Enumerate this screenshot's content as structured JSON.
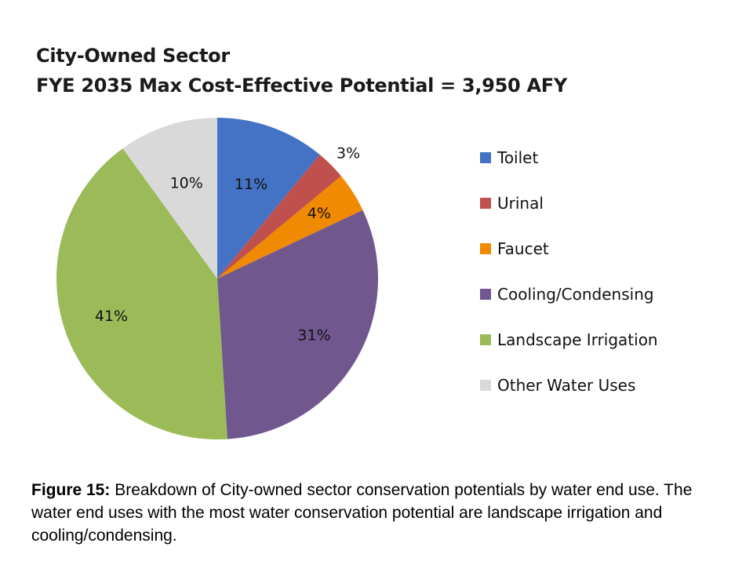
{
  "chart_data": {
    "type": "pie",
    "title": "City-Owned Sector",
    "subtitle": "FYE 2035 Max Cost-Effective Potential = 3,950 AFY",
    "legend_position": "right",
    "slices": [
      {
        "name": "Toilet",
        "value": 11,
        "label": "11%",
        "color": "#4472C4"
      },
      {
        "name": "Urinal",
        "value": 3,
        "label": "3%",
        "color": "#C0504D"
      },
      {
        "name": "Faucet",
        "value": 4,
        "label": "4%",
        "color": "#F08A00"
      },
      {
        "name": "Cooling/Condensing",
        "value": 31,
        "label": "31%",
        "color": "#70588F"
      },
      {
        "name": "Landscape Irrigation",
        "value": 41,
        "label": "41%",
        "color": "#9BBB59"
      },
      {
        "name": "Other Water Uses",
        "value": 10,
        "label": "10%",
        "color": "#D9D9D9"
      }
    ]
  },
  "caption": {
    "label": "Figure 15:",
    "text": " Breakdown of City-owned sector conservation potentials by water end use. The water end uses with the most water conservation potential are landscape irrigation and cooling/condensing."
  }
}
